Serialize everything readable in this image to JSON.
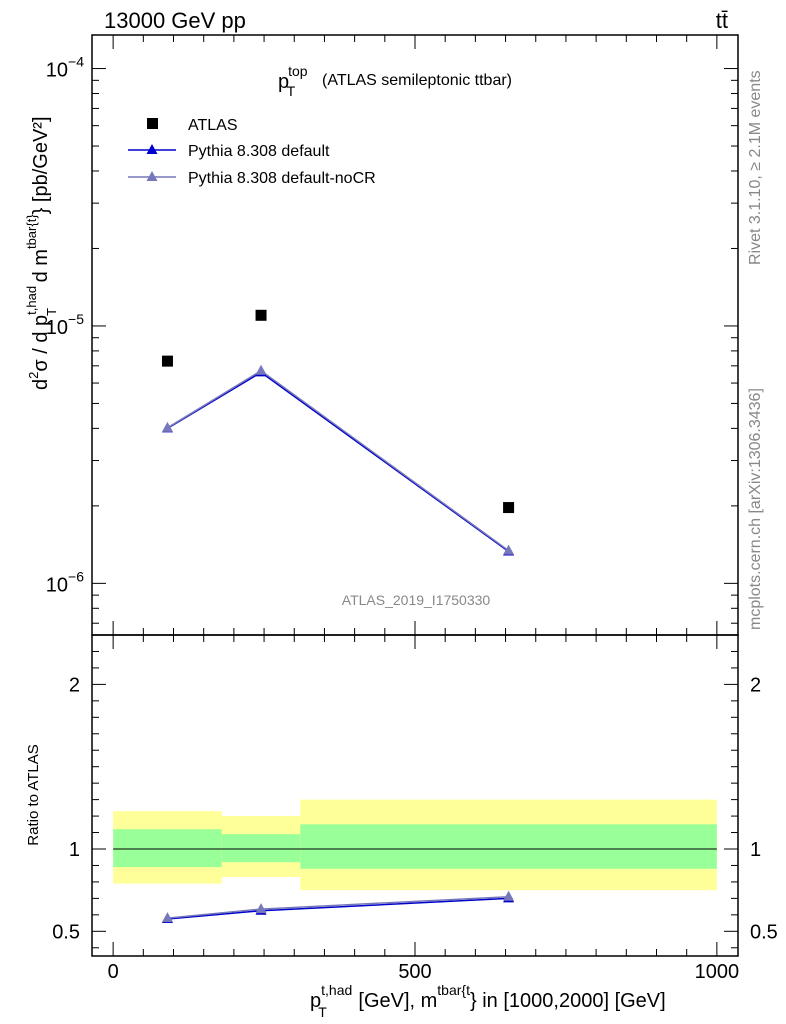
{
  "header": {
    "left": "13000 GeV pp",
    "right": "tt̄"
  },
  "side_text": {
    "rivet": "Rivet 3.1.10, ≥ 2.1M events",
    "mcplots": "mcplots.cern.ch [arXiv:1306.3436]"
  },
  "watermark": "ATLAS_2019_I1750330",
  "colors": {
    "atlas": "#000000",
    "pythia_default": "#0000cc",
    "pythia_nocr": "#7777bb",
    "band_inner": "#99ff99",
    "band_outer": "#ffff99",
    "watermark": "#888888"
  },
  "chart_data": [
    {
      "type": "scatter",
      "panel": "main",
      "title": "(ATLAS semileptonic ttbar)",
      "ylabel": "[pb/GeV²]",
      "yscale": "log",
      "xlim": [
        -35,
        1035
      ],
      "ylim": [
        6.3e-07,
        0.000135
      ],
      "yticks": [
        {
          "value": 1e-06,
          "label": "10",
          "exp": "−6"
        },
        {
          "value": 1e-05,
          "label": "10",
          "exp": "−5"
        },
        {
          "value": 0.0001,
          "label": "10",
          "exp": "−4"
        }
      ],
      "legend_position": "top-left",
      "legend": [
        "ATLAS",
        "Pythia 8.308 default",
        "Pythia 8.308 default-noCR"
      ],
      "series": [
        {
          "name": "ATLAS",
          "marker": "square",
          "x": [
            90,
            245,
            655
          ],
          "y": [
            7.3e-06,
            1.1e-05,
            1.97e-06
          ]
        },
        {
          "name": "Pythia 8.308 default",
          "marker": "triangle",
          "x": [
            90,
            245,
            655
          ],
          "y": [
            4e-06,
            6.6e-06,
            1.33e-06
          ]
        },
        {
          "name": "Pythia 8.308 default-noCR",
          "marker": "triangle",
          "x": [
            90,
            245,
            655
          ],
          "y": [
            4.02e-06,
            6.7e-06,
            1.34e-06
          ]
        }
      ]
    },
    {
      "type": "line",
      "panel": "ratio",
      "ylabel": "Ratio to ATLAS",
      "xlabel_suffix": "} in [1000,2000] [GeV]",
      "xlim": [
        -35,
        1035
      ],
      "ylim": [
        0.35,
        2.3
      ],
      "xticks": [
        0,
        500,
        1000
      ],
      "yticks": [
        0.5,
        1,
        2
      ],
      "reference": 1,
      "bands": [
        {
          "x0": 0,
          "x1": 180,
          "inner": [
            0.89,
            1.12
          ],
          "outer": [
            0.79,
            1.23
          ]
        },
        {
          "x0": 180,
          "x1": 310,
          "inner": [
            0.92,
            1.09
          ],
          "outer": [
            0.83,
            1.2
          ]
        },
        {
          "x0": 310,
          "x1": 1000,
          "inner": [
            0.88,
            1.15
          ],
          "outer": [
            0.75,
            1.3
          ]
        }
      ],
      "series": [
        {
          "name": "Pythia 8.308 default",
          "x": [
            90,
            245,
            655
          ],
          "y": [
            0.575,
            0.625,
            0.7
          ]
        },
        {
          "name": "Pythia 8.308 default-noCR",
          "x": [
            90,
            245,
            655
          ],
          "y": [
            0.58,
            0.635,
            0.71
          ]
        }
      ]
    }
  ]
}
